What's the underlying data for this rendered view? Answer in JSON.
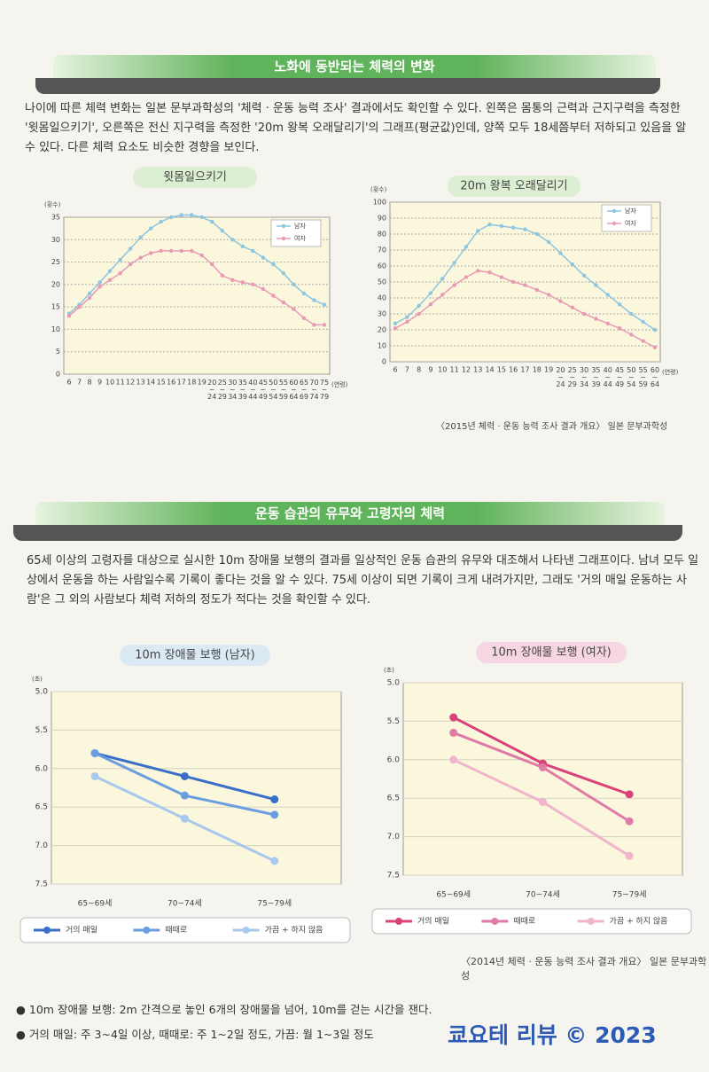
{
  "section1": {
    "title": "노화에 동반되는 체력의 변화",
    "body": "나이에 따른 체력 변화는 일본 문부과학성의 '체력 · 운동 능력 조사' 결과에서도 확인할 수 있다. 왼쪽은 몸통의 근력과 근지구력을 측정한 '윗몸일으키기', 오른쪽은 전신 지구력을 측정한 '20m 왕복 오래달리기'의 그래프(평균값)인데, 양쪽 모두 18세쯤부터 저하되고 있음을 알 수 있다. 다른 체력 요소도 비슷한 경향을 보인다."
  },
  "source1": "〈2015년 체력 · 운동 능력 조사 결과 개요〉 일본 문부과학성",
  "section2": {
    "title": "운동 습관의 유무와 고령자의 체력",
    "body": "65세 이상의 고령자를 대상으로 실시한 10m 장애물 보행의 결과를 일상적인 운동 습관의 유무와 대조해서 나타낸 그래프이다. 남녀 모두 일상에서 운동을 하는 사람일수록 기록이 좋다는 것을 알 수 있다. 75세 이상이 되면 기록이 크게 내려가지만, 그래도 '거의 매일 운동하는 사람'은 그 외의 사람보다 체력 저하의 정도가 적다는 것을 확인할 수 있다."
  },
  "source2": "〈2014년 체력 · 운동 능력 조사 결과 개요〉 일본 문부과학성",
  "notes": [
    "10m 장애물 보행: 2m 간격으로 놓인 6개의 장애물을 넘어, 10m를 걷는 시간을 잰다.",
    "거의 매일: 주 3~4일 이상, 때때로: 주 1~2일 정도, 가끔: 월 1~3일 정도"
  ],
  "watermark": "쿄요테 리뷰 © 2023",
  "chart_data": [
    {
      "type": "line",
      "title": "윗몸일으키기",
      "y_label": "(횟수)",
      "x_label": "(연령)",
      "categories": [
        "6",
        "7",
        "8",
        "9",
        "10",
        "11",
        "12",
        "13",
        "14",
        "15",
        "16",
        "17",
        "18",
        "19",
        "20~24",
        "25~29",
        "30~34",
        "35~39",
        "40~44",
        "45~49",
        "50~54",
        "55~59",
        "60~64",
        "65~69",
        "70~74",
        "75~79"
      ],
      "series": [
        {
          "name": "남자",
          "color": "#8ec5e0",
          "values": [
            13.5,
            15.5,
            18,
            20.5,
            23,
            25.5,
            28,
            30.5,
            32.5,
            34,
            35,
            35.5,
            35.5,
            35,
            34,
            32,
            30,
            28.5,
            27.5,
            26,
            24.5,
            22.5,
            20,
            18,
            16.5,
            15.5
          ]
        },
        {
          "name": "여자",
          "color": "#e89ab5",
          "values": [
            13,
            15,
            17,
            19.5,
            21,
            22.5,
            24.5,
            26,
            27,
            27.5,
            27.5,
            27.5,
            27.5,
            26.5,
            24.5,
            22,
            21,
            20.5,
            20,
            19,
            17.5,
            16,
            14.5,
            12.5,
            11,
            11
          ]
        }
      ],
      "ylim": [
        0,
        35
      ],
      "yticks": [
        0,
        5,
        10,
        15,
        20,
        25,
        30,
        35
      ],
      "grid": true,
      "legend": "upper right"
    },
    {
      "type": "line",
      "title": "20m 왕복 오래달리기",
      "y_label": "(횟수)",
      "x_label": "(연령)",
      "categories": [
        "6",
        "7",
        "8",
        "9",
        "10",
        "11",
        "12",
        "13",
        "14",
        "15",
        "16",
        "17",
        "18",
        "19",
        "20~24",
        "25~29",
        "30~34",
        "35~39",
        "40~44",
        "45~49",
        "50~54",
        "55~59",
        "60~64"
      ],
      "series": [
        {
          "name": "남자",
          "color": "#8ec5e0",
          "values": [
            24,
            28,
            35,
            43,
            52,
            62,
            72,
            82,
            86,
            85,
            84,
            83,
            80,
            75,
            68,
            61,
            54,
            48,
            42,
            36,
            30,
            25,
            20
          ]
        },
        {
          "name": "여자",
          "color": "#e89ab5",
          "values": [
            21,
            25,
            30,
            36,
            42,
            48,
            53,
            57,
            56,
            53,
            50,
            48,
            45,
            42,
            38,
            34,
            30,
            27,
            24,
            21,
            17,
            13,
            9
          ]
        }
      ],
      "ylim": [
        0,
        100
      ],
      "yticks": [
        0,
        10,
        20,
        30,
        40,
        50,
        60,
        70,
        80,
        90,
        100
      ],
      "grid": true,
      "legend": "upper right"
    },
    {
      "type": "line",
      "title": "10m 장애물 보행 (남자)",
      "y_label": "(초)",
      "categories": [
        "65~69세",
        "70~74세",
        "75~79세"
      ],
      "series": [
        {
          "name": "거의 매일",
          "color": "#3a6fc9",
          "values": [
            5.8,
            6.1,
            6.4
          ]
        },
        {
          "name": "때때로",
          "color": "#6a9ee0",
          "values": [
            5.8,
            6.35,
            6.6
          ]
        },
        {
          "name": "가끔 + 하지 않음",
          "color": "#a9c8ee",
          "values": [
            6.1,
            6.65,
            7.2
          ]
        }
      ],
      "ylim": [
        5,
        7.5
      ],
      "y_inverted": true,
      "yticks": [
        {
          "value": 5,
          "label": "5.0"
        },
        5.5,
        {
          "value": 6,
          "label": "6.0"
        },
        6.5,
        {
          "value": 7,
          "label": "7.0"
        },
        7.5
      ],
      "grid": true,
      "legend": "bottom"
    },
    {
      "type": "line",
      "title": "10m 장애물 보행 (여자)",
      "y_label": "(초)",
      "categories": [
        "65~69세",
        "70~74세",
        "75~79세"
      ],
      "series": [
        {
          "name": "거의 매일",
          "color": "#d9437a",
          "values": [
            5.45,
            6.05,
            6.45
          ]
        },
        {
          "name": "때때로",
          "color": "#e07aa6",
          "values": [
            5.65,
            6.1,
            6.8
          ]
        },
        {
          "name": "가끔 + 하지 않음",
          "color": "#f0b5cd",
          "values": [
            6.0,
            6.55,
            7.25
          ]
        }
      ],
      "ylim": [
        5,
        7.5
      ],
      "y_inverted": true,
      "yticks": [
        {
          "value": 5,
          "label": "5.0"
        },
        5.5,
        {
          "value": 6,
          "label": "6.0"
        },
        6.5,
        {
          "value": 7,
          "label": "7.0"
        },
        7.5
      ],
      "grid": true,
      "legend": "bottom"
    }
  ]
}
